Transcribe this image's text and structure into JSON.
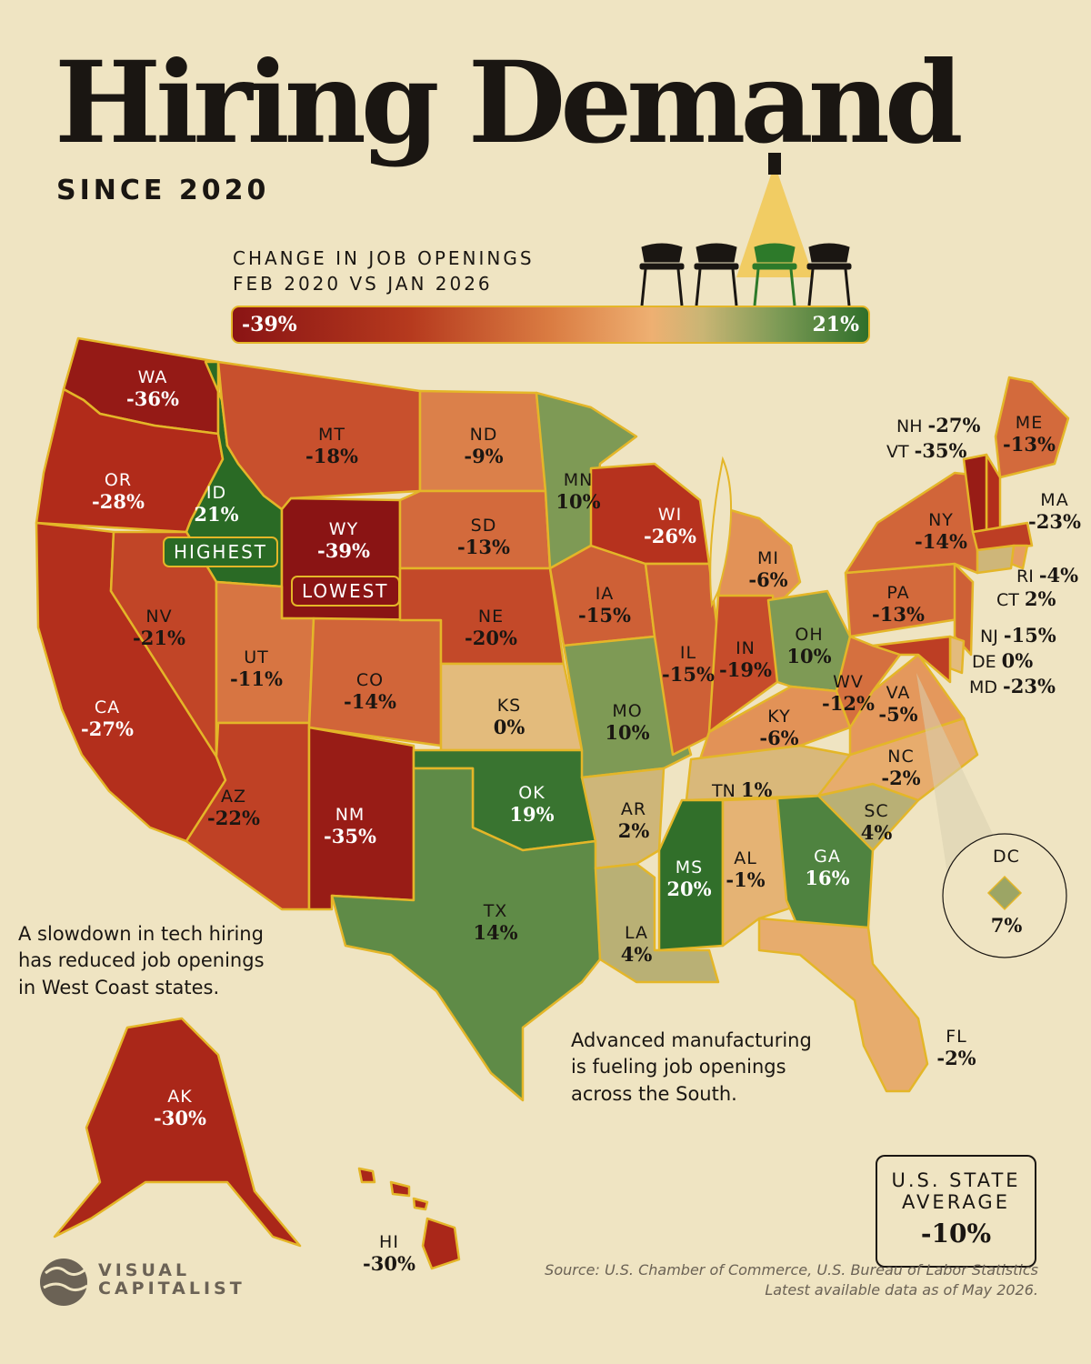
{
  "title": "Hiring Demand",
  "subtitle": "SINCE 2020",
  "legend": {
    "line1": "CHANGE IN JOB OPENINGS",
    "line2": "FEB 2020 VS JAN 2026",
    "min": "-39%",
    "max": "21%",
    "colors": {
      "low": "#8a1414",
      "mid": "#eeb072",
      "high": "#2f6f2a"
    }
  },
  "tags": {
    "highest": "HIGHEST",
    "lowest": "LOWEST"
  },
  "states": {
    "WA": {
      "ab": "WA",
      "pc": "-36%",
      "value": -36
    },
    "OR": {
      "ab": "OR",
      "pc": "-28%",
      "value": -28
    },
    "CA": {
      "ab": "CA",
      "pc": "-27%",
      "value": -27
    },
    "ID": {
      "ab": "ID",
      "pc": "21%",
      "value": 21
    },
    "NV": {
      "ab": "NV",
      "pc": "-21%",
      "value": -21
    },
    "MT": {
      "ab": "MT",
      "pc": "-18%",
      "value": -18
    },
    "WY": {
      "ab": "WY",
      "pc": "-39%",
      "value": -39
    },
    "UT": {
      "ab": "UT",
      "pc": "-11%",
      "value": -11
    },
    "AZ": {
      "ab": "AZ",
      "pc": "-22%",
      "value": -22
    },
    "CO": {
      "ab": "CO",
      "pc": "-14%",
      "value": -14
    },
    "NM": {
      "ab": "NM",
      "pc": "-35%",
      "value": -35
    },
    "ND": {
      "ab": "ND",
      "pc": "-9%",
      "value": -9
    },
    "SD": {
      "ab": "SD",
      "pc": "-13%",
      "value": -13
    },
    "NE": {
      "ab": "NE",
      "pc": "-20%",
      "value": -20
    },
    "KS": {
      "ab": "KS",
      "pc": "0%",
      "value": 0
    },
    "OK": {
      "ab": "OK",
      "pc": "19%",
      "value": 19
    },
    "TX": {
      "ab": "TX",
      "pc": "14%",
      "value": 14
    },
    "MN": {
      "ab": "MN",
      "pc": "10%",
      "value": 10
    },
    "IA": {
      "ab": "IA",
      "pc": "-15%",
      "value": -15
    },
    "MO": {
      "ab": "MO",
      "pc": "10%",
      "value": 10
    },
    "AR": {
      "ab": "AR",
      "pc": "2%",
      "value": 2
    },
    "LA": {
      "ab": "LA",
      "pc": "4%",
      "value": 4
    },
    "WI": {
      "ab": "WI",
      "pc": "-26%",
      "value": -26
    },
    "IL": {
      "ab": "IL",
      "pc": "-15%",
      "value": -15
    },
    "MI": {
      "ab": "MI",
      "pc": "-6%",
      "value": -6
    },
    "IN": {
      "ab": "IN",
      "pc": "-19%",
      "value": -19
    },
    "OH": {
      "ab": "OH",
      "pc": "10%",
      "value": 10
    },
    "KY": {
      "ab": "KY",
      "pc": "-6%",
      "value": -6
    },
    "TN": {
      "ab": "TN",
      "pc": "1%",
      "value": 1
    },
    "MS": {
      "ab": "MS",
      "pc": "20%",
      "value": 20
    },
    "AL": {
      "ab": "AL",
      "pc": "-1%",
      "value": -1
    },
    "GA": {
      "ab": "GA",
      "pc": "16%",
      "value": 16
    },
    "FL": {
      "ab": "FL",
      "pc": "-2%",
      "value": -2
    },
    "SC": {
      "ab": "SC",
      "pc": "4%",
      "value": 4
    },
    "NC": {
      "ab": "NC",
      "pc": "-2%",
      "value": -2
    },
    "VA": {
      "ab": "VA",
      "pc": "-5%",
      "value": -5
    },
    "WV": {
      "ab": "WV",
      "pc": "-12%",
      "value": -12
    },
    "PA": {
      "ab": "PA",
      "pc": "-13%",
      "value": -13
    },
    "NY": {
      "ab": "NY",
      "pc": "-14%",
      "value": -14
    },
    "ME": {
      "ab": "ME",
      "pc": "-13%",
      "value": -13
    },
    "NH": {
      "ab": "NH",
      "pc": "-27%",
      "value": -27
    },
    "VT": {
      "ab": "VT",
      "pc": "-35%",
      "value": -35
    },
    "MA": {
      "ab": "MA",
      "pc": "-23%",
      "value": -23
    },
    "RI": {
      "ab": "RI",
      "pc": "-4%",
      "value": -4
    },
    "CT": {
      "ab": "CT",
      "pc": "2%",
      "value": 2
    },
    "NJ": {
      "ab": "NJ",
      "pc": "-15%",
      "value": -15
    },
    "DE": {
      "ab": "DE",
      "pc": "0%",
      "value": 0
    },
    "MD": {
      "ab": "MD",
      "pc": "-23%",
      "value": -23
    },
    "DC": {
      "ab": "DC",
      "pc": "7%",
      "value": 7
    },
    "AK": {
      "ab": "AK",
      "pc": "-30%",
      "value": -30
    },
    "HI": {
      "ab": "HI",
      "pc": "-30%",
      "value": -30
    }
  },
  "notes": {
    "west": [
      "A slowdown in tech hiring",
      "has reduced job openings",
      "in West Coast states."
    ],
    "south": [
      "Advanced manufacturing",
      "is fueling job openings",
      "across the South."
    ]
  },
  "average": {
    "line1": "U.S. STATE",
    "line2": "AVERAGE",
    "value": "-10%"
  },
  "source": {
    "line1": "Source: U.S. Chamber of Commerce, U.S. Bureau of Labor Statistics",
    "line2": "Latest available data as of May 2026."
  },
  "brand": {
    "line1": "VISUAL",
    "line2": "CAPITALIST"
  }
}
